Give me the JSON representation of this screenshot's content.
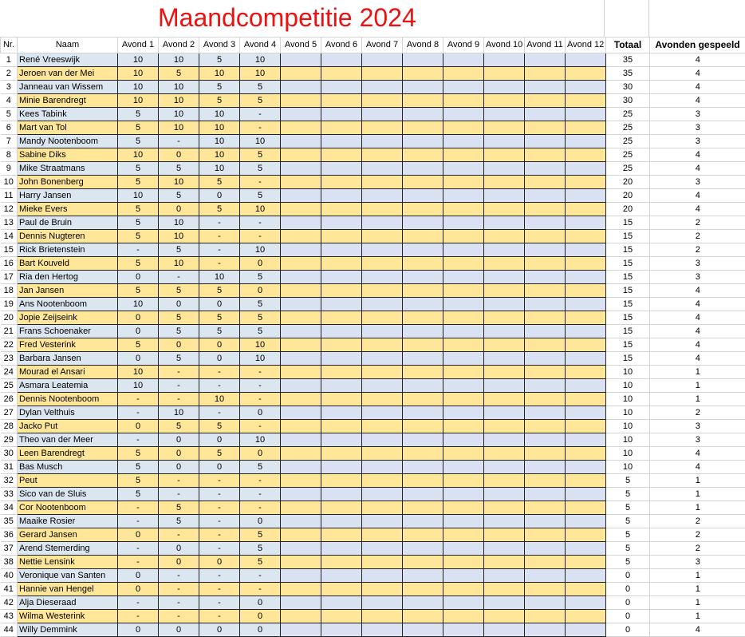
{
  "title": "Maandcompetitie 2024",
  "headers": [
    "Nr.",
    "Naam",
    "Avond 1",
    "Avond 2",
    "Avond 3",
    "Avond 4",
    "Avond 5",
    "Avond 6",
    "Avond 7",
    "Avond 8",
    "Avond 9",
    "Avond 10",
    "Avond 11",
    "Avond 12",
    "Totaal",
    "Avonden gespeeld"
  ],
  "colors": {
    "title": "#ee1111",
    "row_blue": "#dce6f1",
    "row_yellow": "#ffe699",
    "gridline": "#d4d4d4"
  },
  "rows": [
    {
      "nr": "1",
      "naam": "René Vreeswijk",
      "a1": "10",
      "a2": "10",
      "a3": "5",
      "a4": "10",
      "totaal": "35",
      "gespeeld": "4"
    },
    {
      "nr": "2",
      "naam": "Jeroen van der Mei",
      "a1": "10",
      "a2": "5",
      "a3": "10",
      "a4": "10",
      "totaal": "35",
      "gespeeld": "4"
    },
    {
      "nr": "3",
      "naam": "Janneau van Wissem",
      "a1": "10",
      "a2": "10",
      "a3": "5",
      "a4": "5",
      "totaal": "30",
      "gespeeld": "4"
    },
    {
      "nr": "4",
      "naam": "Minie Barendregt",
      "a1": "10",
      "a2": "10",
      "a3": "5",
      "a4": "5",
      "totaal": "30",
      "gespeeld": "4"
    },
    {
      "nr": "5",
      "naam": "Kees Tabink",
      "a1": "5",
      "a2": "10",
      "a3": "10",
      "a4": "-",
      "totaal": "25",
      "gespeeld": "3"
    },
    {
      "nr": "6",
      "naam": "Mart van Tol",
      "a1": "5",
      "a2": "10",
      "a3": "10",
      "a4": "-",
      "totaal": "25",
      "gespeeld": "3"
    },
    {
      "nr": "7",
      "naam": "Mandy Nootenboom",
      "a1": "5",
      "a2": "-",
      "a3": "10",
      "a4": "10",
      "totaal": "25",
      "gespeeld": "3"
    },
    {
      "nr": "8",
      "naam": "Sabine Diks",
      "a1": "10",
      "a2": "0",
      "a3": "10",
      "a4": "5",
      "totaal": "25",
      "gespeeld": "4"
    },
    {
      "nr": "9",
      "naam": "Mike Straatmans",
      "a1": "5",
      "a2": "5",
      "a3": "10",
      "a4": "5",
      "totaal": "25",
      "gespeeld": "4"
    },
    {
      "nr": "10",
      "naam": "John Bonenberg",
      "a1": "5",
      "a2": "10",
      "a3": "5",
      "a4": "-",
      "totaal": "20",
      "gespeeld": "3"
    },
    {
      "nr": "11",
      "naam": "Harry Jansen",
      "a1": "10",
      "a2": "5",
      "a3": "0",
      "a4": "5",
      "totaal": "20",
      "gespeeld": "4"
    },
    {
      "nr": "12",
      "naam": "Mieke Evers",
      "a1": "5",
      "a2": "0",
      "a3": "5",
      "a4": "10",
      "totaal": "20",
      "gespeeld": "4"
    },
    {
      "nr": "13",
      "naam": "Paul de Bruin",
      "a1": "5",
      "a2": "10",
      "a3": "-",
      "a4": "-",
      "totaal": "15",
      "gespeeld": "2"
    },
    {
      "nr": "14",
      "naam": "Dennis Nugteren",
      "a1": "5",
      "a2": "10",
      "a3": "-",
      "a4": "-",
      "totaal": "15",
      "gespeeld": "2"
    },
    {
      "nr": "15",
      "naam": "Rick Brietenstein",
      "a1": "-",
      "a2": "5",
      "a3": "-",
      "a4": "10",
      "totaal": "15",
      "gespeeld": "2"
    },
    {
      "nr": "16",
      "naam": "Bart Kouveld",
      "a1": "5",
      "a2": "10",
      "a3": "-",
      "a4": "0",
      "totaal": "15",
      "gespeeld": "3"
    },
    {
      "nr": "17",
      "naam": "Ria den Hertog",
      "a1": "0",
      "a2": "-",
      "a3": "10",
      "a4": "5",
      "totaal": "15",
      "gespeeld": "3"
    },
    {
      "nr": "18",
      "naam": "Jan Jansen",
      "a1": "5",
      "a2": "5",
      "a3": "5",
      "a4": "0",
      "totaal": "15",
      "gespeeld": "4"
    },
    {
      "nr": "19",
      "naam": "Ans Nootenboom",
      "a1": "10",
      "a2": "0",
      "a3": "0",
      "a4": "5",
      "totaal": "15",
      "gespeeld": "4"
    },
    {
      "nr": "20",
      "naam": "Jopie Zeijseink",
      "a1": "0",
      "a2": "5",
      "a3": "5",
      "a4": "5",
      "totaal": "15",
      "gespeeld": "4"
    },
    {
      "nr": "21",
      "naam": "Frans Schoenaker",
      "a1": "0",
      "a2": "5",
      "a3": "5",
      "a4": "5",
      "totaal": "15",
      "gespeeld": "4"
    },
    {
      "nr": "22",
      "naam": "Fred Vesterink",
      "a1": "5",
      "a2": "0",
      "a3": "0",
      "a4": "10",
      "totaal": "15",
      "gespeeld": "4"
    },
    {
      "nr": "23",
      "naam": "Barbara Jansen",
      "a1": "0",
      "a2": "5",
      "a3": "0",
      "a4": "10",
      "totaal": "15",
      "gespeeld": "4"
    },
    {
      "nr": "24",
      "naam": "Mourad el Ansari",
      "a1": "10",
      "a2": "-",
      "a3": "-",
      "a4": "-",
      "totaal": "10",
      "gespeeld": "1"
    },
    {
      "nr": "25",
      "naam": "Asmara Leatemia",
      "a1": "10",
      "a2": "-",
      "a3": "-",
      "a4": "-",
      "totaal": "10",
      "gespeeld": "1"
    },
    {
      "nr": "26",
      "naam": "Dennis Nootenboom",
      "a1": "-",
      "a2": "-",
      "a3": "10",
      "a4": "-",
      "totaal": "10",
      "gespeeld": "1"
    },
    {
      "nr": "27",
      "naam": "Dylan Velthuis",
      "a1": "-",
      "a2": "10",
      "a3": "-",
      "a4": "0",
      "totaal": "10",
      "gespeeld": "2"
    },
    {
      "nr": "28",
      "naam": "Jacko Put",
      "a1": "0",
      "a2": "5",
      "a3": "5",
      "a4": "-",
      "totaal": "10",
      "gespeeld": "3"
    },
    {
      "nr": "29",
      "naam": "Theo van der Meer",
      "a1": "-",
      "a2": "0",
      "a3": "0",
      "a4": "10",
      "totaal": "10",
      "gespeeld": "3"
    },
    {
      "nr": "30",
      "naam": "Leen Barendregt",
      "a1": "5",
      "a2": "0",
      "a3": "5",
      "a4": "0",
      "totaal": "10",
      "gespeeld": "4"
    },
    {
      "nr": "31",
      "naam": "Bas Musch",
      "a1": "5",
      "a2": "0",
      "a3": "0",
      "a4": "5",
      "totaal": "10",
      "gespeeld": "4"
    },
    {
      "nr": "32",
      "naam": "Peut",
      "a1": "5",
      "a2": "-",
      "a3": "-",
      "a4": "-",
      "totaal": "5",
      "gespeeld": "1"
    },
    {
      "nr": "33",
      "naam": "Sico van de Sluis",
      "a1": "5",
      "a2": "-",
      "a3": "-",
      "a4": "-",
      "totaal": "5",
      "gespeeld": "1"
    },
    {
      "nr": "34",
      "naam": "Cor Nootenboom",
      "a1": "-",
      "a2": "5",
      "a3": "-",
      "a4": "-",
      "totaal": "5",
      "gespeeld": "1"
    },
    {
      "nr": "35",
      "naam": "Maaike Rosier",
      "a1": "-",
      "a2": "5",
      "a3": "-",
      "a4": "0",
      "totaal": "5",
      "gespeeld": "2"
    },
    {
      "nr": "36",
      "naam": "Gerard Jansen",
      "a1": "0",
      "a2": "-",
      "a3": "-",
      "a4": "5",
      "totaal": "5",
      "gespeeld": "2"
    },
    {
      "nr": "37",
      "naam": "Arend Stemerding",
      "a1": "-",
      "a2": "0",
      "a3": "-",
      "a4": "5",
      "totaal": "5",
      "gespeeld": "2"
    },
    {
      "nr": "38",
      "naam": "Nettie Lensink",
      "a1": "-",
      "a2": "0",
      "a3": "0",
      "a4": "5",
      "totaal": "5",
      "gespeeld": "3"
    },
    {
      "nr": "40",
      "naam": "Veronique van Santen",
      "a1": "0",
      "a2": "-",
      "a3": "-",
      "a4": "-",
      "totaal": "0",
      "gespeeld": "1"
    },
    {
      "nr": "41",
      "naam": "Hannie van Hengel",
      "a1": "0",
      "a2": "-",
      "a3": "-",
      "a4": "-",
      "totaal": "0",
      "gespeeld": "1"
    },
    {
      "nr": "42",
      "naam": "Alja Dieseraad",
      "a1": "-",
      "a2": "-",
      "a3": "-",
      "a4": "0",
      "totaal": "0",
      "gespeeld": "1"
    },
    {
      "nr": "43",
      "naam": "Wilma Westerink",
      "a1": "-",
      "a2": "-",
      "a3": "-",
      "a4": "0",
      "totaal": "0",
      "gespeeld": "1"
    },
    {
      "nr": "44",
      "naam": "Willy Demmink",
      "a1": "0",
      "a2": "0",
      "a3": "0",
      "a4": "0",
      "totaal": "0",
      "gespeeld": "4"
    }
  ]
}
